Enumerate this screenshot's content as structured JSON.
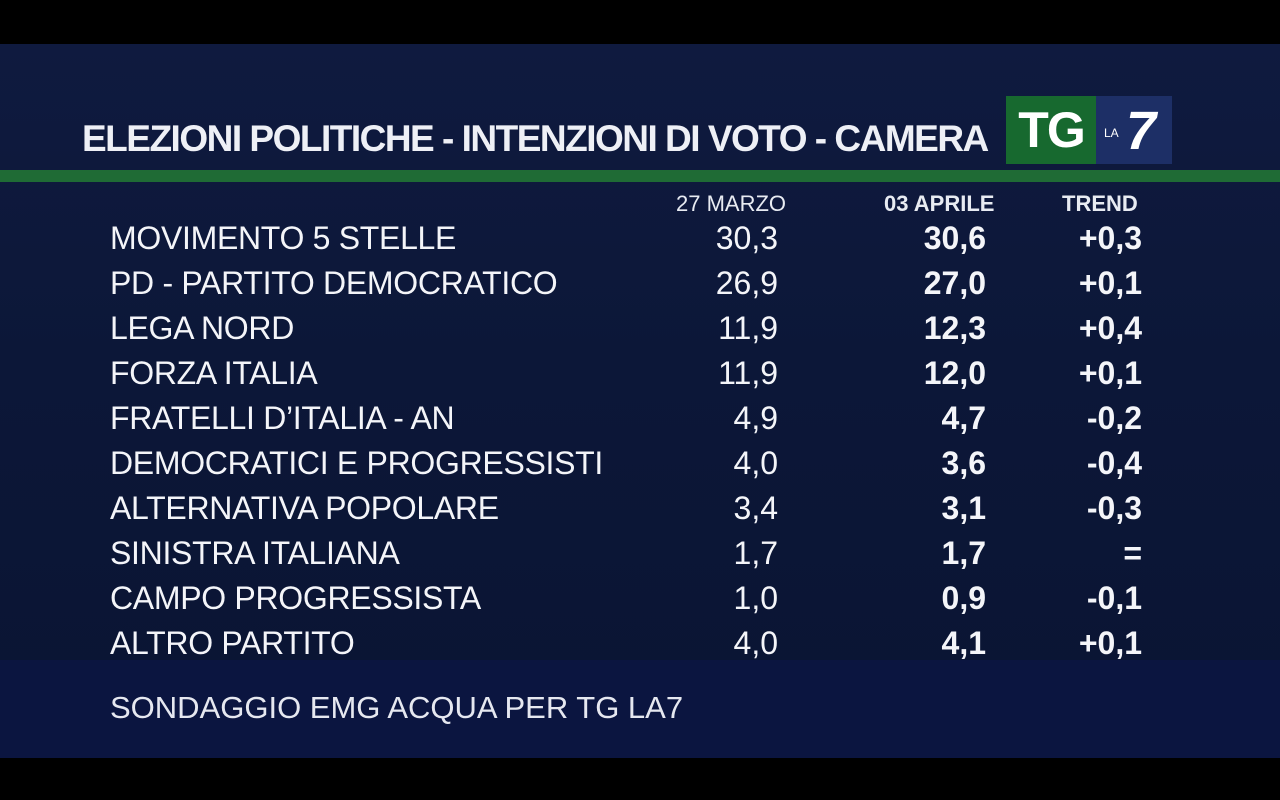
{
  "header": {
    "title": "ELEZIONI POLITICHE - INTENZIONI DI VOTO - CAMERA",
    "logo_tg": "TG",
    "logo_la": "LA",
    "logo_seven": "7"
  },
  "columns": {
    "date1": "27 MARZO",
    "date2": "03 APRILE",
    "trend": "TREND"
  },
  "chart_data": {
    "type": "table",
    "title": "ELEZIONI POLITICHE - INTENZIONI DI VOTO - CAMERA",
    "columns": [
      "27 MARZO",
      "03 APRILE",
      "TREND"
    ],
    "rows": [
      {
        "party": "MOVIMENTO 5 STELLE",
        "v1": "30,3",
        "v2": "30,6",
        "trend": "+0,3"
      },
      {
        "party": "PD - PARTITO DEMOCRATICO",
        "v1": "26,9",
        "v2": "27,0",
        "trend": "+0,1"
      },
      {
        "party": "LEGA NORD",
        "v1": "11,9",
        "v2": "12,3",
        "trend": "+0,4"
      },
      {
        "party": "FORZA ITALIA",
        "v1": "11,9",
        "v2": "12,0",
        "trend": "+0,1"
      },
      {
        "party": "FRATELLI D’ITALIA - AN",
        "v1": "4,9",
        "v2": "4,7",
        "trend": "-0,2"
      },
      {
        "party": "DEMOCRATICI E PROGRESSISTI",
        "v1": "4,0",
        "v2": "3,6",
        "trend": "-0,4"
      },
      {
        "party": "ALTERNATIVA POPOLARE",
        "v1": "3,4",
        "v2": "3,1",
        "trend": "-0,3"
      },
      {
        "party": "SINISTRA ITALIANA",
        "v1": "1,7",
        "v2": "1,7",
        "trend": "="
      },
      {
        "party": "CAMPO PROGRESSISTA",
        "v1": "1,0",
        "v2": "0,9",
        "trend": "-0,1"
      },
      {
        "party": "ALTRO PARTITO",
        "v1": "4,0",
        "v2": "4,1",
        "trend": "+0,1"
      }
    ]
  },
  "footer": {
    "source": "SONDAGGIO EMG ACQUA PER TG LA7"
  },
  "colors": {
    "background": "#0c1738",
    "rule": "#1f6b35",
    "logo_green": "#17692f",
    "logo_blue": "#1d2f66"
  }
}
